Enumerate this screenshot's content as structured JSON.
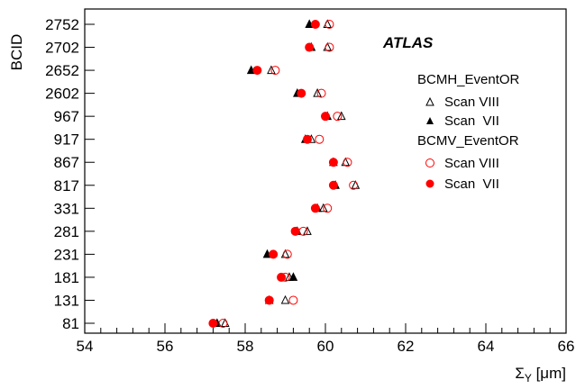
{
  "chart_data": {
    "type": "scatter",
    "experiment_label": "ATLAS",
    "xlabel_symbol": "Σ",
    "xlabel_subscript": "Y",
    "xlabel_unit": " [μm]",
    "ylabel": "BCID",
    "xlim": [
      54,
      66
    ],
    "xticks": [
      "54",
      "56",
      "58",
      "60",
      "62",
      "64",
      "66"
    ],
    "categories": [
      "81",
      "131",
      "181",
      "231",
      "281",
      "331",
      "817",
      "867",
      "917",
      "967",
      "2602",
      "2652",
      "2702",
      "2752"
    ],
    "legend_groups": [
      {
        "title": "BCMH_EventOR",
        "entries": [
          "Scan VIII",
          "Scan  VII"
        ]
      },
      {
        "title": "BCMV_EventOR",
        "entries": [
          "Scan VIII",
          "Scan  VII"
        ]
      }
    ],
    "series": [
      {
        "name": "Scan VIII",
        "detector": "BCMH_EventOR",
        "marker": "open-triangle",
        "color": "#000000",
        "values": [
          57.5,
          59.0,
          59.1,
          59.0,
          59.55,
          59.95,
          60.75,
          60.5,
          59.65,
          60.4,
          59.8,
          58.65,
          60.05,
          60.05
        ]
      },
      {
        "name": "Scan  VII",
        "detector": "BCMH_EventOR",
        "marker": "filled-triangle",
        "color": "#000000",
        "values": [
          57.3,
          58.6,
          59.2,
          58.55,
          59.3,
          59.8,
          60.25,
          60.2,
          59.5,
          60.05,
          59.3,
          58.15,
          59.65,
          59.6
        ]
      },
      {
        "name": "Scan VIII",
        "detector": "BCMV_EventOR",
        "marker": "open-circle",
        "color": "#ff0000",
        "values": [
          57.45,
          59.2,
          59.0,
          59.05,
          59.45,
          60.05,
          60.7,
          60.55,
          59.85,
          60.3,
          59.9,
          58.75,
          60.1,
          60.1
        ]
      },
      {
        "name": "Scan  VII",
        "detector": "BCMV_EventOR",
        "marker": "filled-circle",
        "color": "#ff0000",
        "values": [
          57.2,
          58.6,
          58.9,
          58.7,
          59.25,
          59.75,
          60.2,
          60.2,
          59.55,
          60.0,
          59.4,
          58.3,
          59.6,
          59.75
        ]
      }
    ]
  }
}
